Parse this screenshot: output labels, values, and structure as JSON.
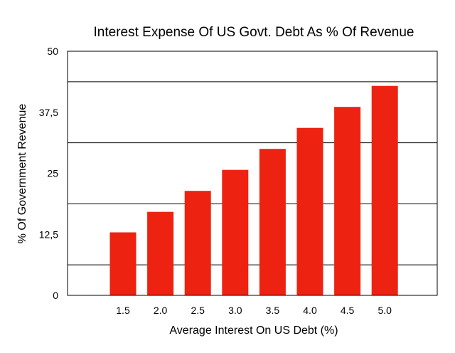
{
  "chart_data": {
    "type": "bar",
    "title": "Interest Expense Of US Govt. Debt As % Of Revenue",
    "xlabel": "Average Interest On US Debt (%)",
    "ylabel": "% Of Government Revenue",
    "categories": [
      "1.5",
      "2.0",
      "2.5",
      "3.0",
      "3.5",
      "4.0",
      "4.5",
      "5.0"
    ],
    "values": [
      12.9,
      17.1,
      21.4,
      25.7,
      30.0,
      34.3,
      38.6,
      42.9
    ],
    "ylim": [
      0,
      50
    ],
    "y_tick_labels": [
      "0",
      "12,5",
      "25",
      "37,5",
      "50"
    ],
    "y_gridlines": [
      6.25,
      18.75,
      31.25,
      43.75
    ],
    "bar_color": "#ee2211",
    "grid": true
  }
}
